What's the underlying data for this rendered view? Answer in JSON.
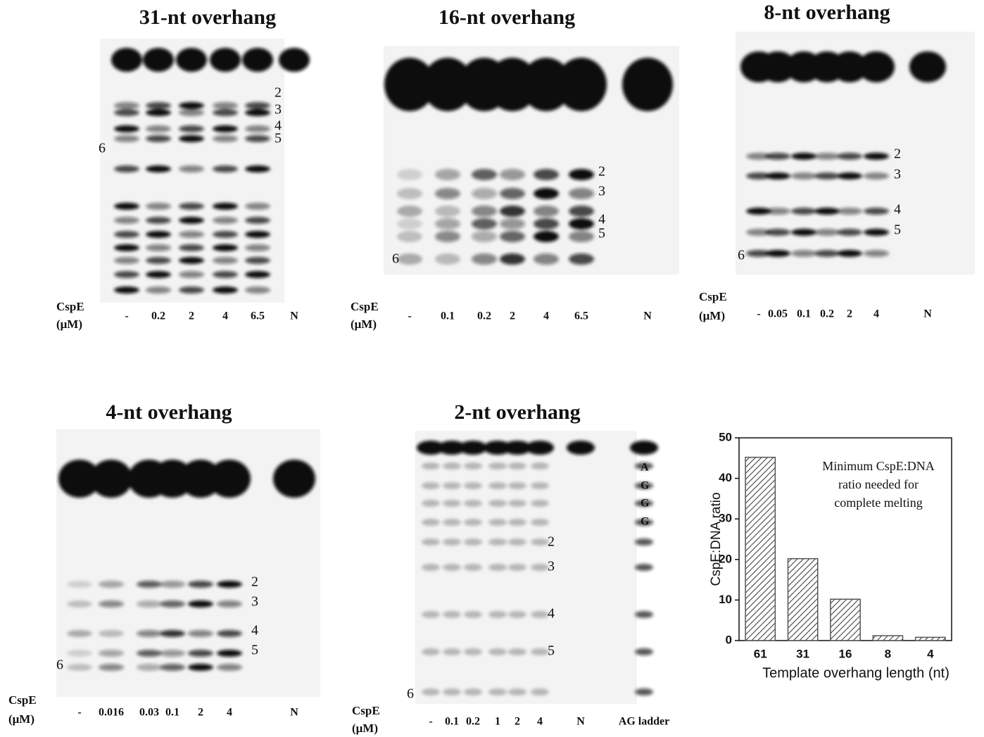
{
  "gels": [
    {
      "title": "31-nt overhang",
      "row_label": [
        "CspE",
        "(μM)"
      ],
      "lanes": [
        "-",
        "0.2",
        "2",
        "4",
        "6.5",
        "N"
      ],
      "band_labels": [
        "2",
        "3",
        "4",
        "5",
        "6"
      ]
    },
    {
      "title": "16-nt overhang",
      "row_label": [
        "CspE",
        "(μM)"
      ],
      "lanes": [
        "-",
        "0.1",
        "0.2",
        "2",
        "4",
        "6.5",
        "N"
      ],
      "band_labels": [
        "2",
        "3",
        "4",
        "5",
        "6"
      ]
    },
    {
      "title": "8-nt overhang",
      "row_label": [
        "CspE",
        "(μM)"
      ],
      "lanes": [
        "-",
        "0.05",
        "0.1",
        "0.2",
        "2",
        "4",
        "N"
      ],
      "band_labels": [
        "2",
        "3",
        "4",
        "5",
        "6"
      ]
    },
    {
      "title": "4-nt overhang",
      "row_label": [
        "CspE",
        "(μM)"
      ],
      "lanes": [
        "-",
        "0.016",
        "0.03",
        "0.1",
        "2",
        "4",
        "N"
      ],
      "band_labels": [
        "2",
        "3",
        "4",
        "5",
        "6"
      ]
    },
    {
      "title": "2-nt overhang",
      "row_label": [
        "CspE",
        "(μM)"
      ],
      "lanes": [
        "-",
        "0.1",
        "0.2",
        "1",
        "2",
        "4",
        "N",
        "AG ladder"
      ],
      "band_labels": [
        "2",
        "3",
        "4",
        "5",
        "6"
      ],
      "ladder_labels": [
        "A",
        "G",
        "G",
        "G"
      ]
    }
  ],
  "chart_data": {
    "type": "bar",
    "categories": [
      "61",
      "31",
      "16",
      "8",
      "4"
    ],
    "values": [
      45.2,
      20.2,
      10.2,
      1.2,
      0.8
    ],
    "ylim": [
      0,
      50
    ],
    "yticks": [
      0,
      10,
      20,
      30,
      40,
      50
    ],
    "xlabel": "Template overhang length (nt)",
    "ylabel": "CspE:DNA ratio",
    "annotation": [
      "Minimum CspE:DNA",
      "ratio needed for",
      "complete melting"
    ],
    "color": "#555555",
    "grid": false
  }
}
